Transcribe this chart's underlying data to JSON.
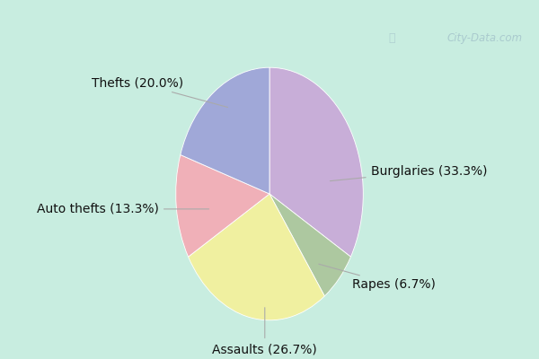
{
  "labels": [
    "Burglaries",
    "Rapes",
    "Assaults",
    "Auto thefts",
    "Thefts"
  ],
  "values": [
    33.3,
    6.7,
    26.7,
    13.3,
    20.0
  ],
  "colors": [
    "#c8aed8",
    "#adc8a0",
    "#f0f0a0",
    "#f0b0b8",
    "#a0a8d8"
  ],
  "label_texts": [
    "Burglaries (33.3%)",
    "Rapes (6.7%)",
    "Assaults (26.7%)",
    "Auto thefts (13.3%)",
    "Thefts (20.0%)"
  ],
  "background_top": "#d8f0e8",
  "background_bottom": "#e8f8f0",
  "title_color": "#111111",
  "title_fontsize": 15,
  "label_fontsize": 10,
  "watermark": "City-Data.com"
}
